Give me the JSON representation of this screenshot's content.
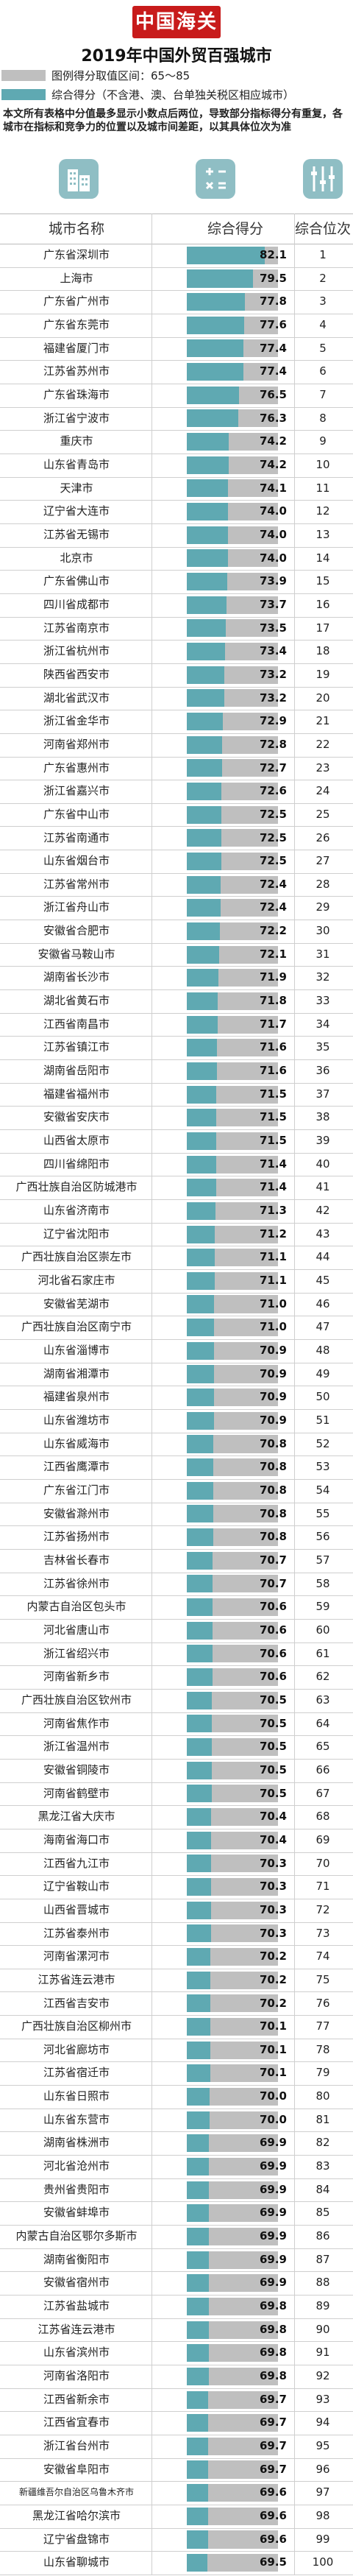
{
  "header": {
    "logo": "中国海关",
    "title": "2019年中国外贸百强城市"
  },
  "legend": {
    "range_label": "图例得分取值区间：65～85",
    "series_label": "综合得分（不含港、澳、台单独关税区相应城市）",
    "range_color": "#bfbfbf",
    "series_color": "#5fa9b2"
  },
  "note": "本文所有表格中分值最多显示小数点后两位，导致部分指标得分有重复，各城市在指标和竞争力的位置以及城市间差距，以其具体位次为准",
  "icons": [
    {
      "name": "building-icon",
      "color": "#8fbec4"
    },
    {
      "name": "calculator-icon",
      "color": "#8fbec4"
    },
    {
      "name": "ranking-list-icon",
      "color": "#8fbec4"
    }
  ],
  "columns": {
    "city": "城市名称",
    "score": "综合得分",
    "rank": "综合位次"
  },
  "chart_data": {
    "type": "bar",
    "title": "2019年中国外贸百强城市",
    "xlim": [
      65,
      85
    ],
    "categories": [
      "广东省深圳市",
      "上海市",
      "广东省广州市",
      "广东省东莞市",
      "福建省厦门市",
      "江苏省苏州市",
      "广东省珠海市",
      "浙江省宁波市",
      "重庆市",
      "山东省青岛市",
      "天津市",
      "辽宁省大连市",
      "江苏省无锡市",
      "北京市",
      "广东省佛山市",
      "四川省成都市",
      "江苏省南京市",
      "浙江省杭州市",
      "陕西省西安市",
      "湖北省武汉市",
      "浙江省金华市",
      "河南省郑州市",
      "广东省惠州市",
      "浙江省嘉兴市",
      "广东省中山市",
      "江苏省南通市",
      "山东省烟台市",
      "江苏省常州市",
      "浙江省舟山市",
      "安徽省合肥市",
      "安徽省马鞍山市",
      "湖南省长沙市",
      "湖北省黄石市",
      "江西省南昌市",
      "江苏省镇江市",
      "湖南省岳阳市",
      "福建省福州市",
      "安徽省安庆市",
      "山西省太原市",
      "四川省绵阳市",
      "广西壮族自治区防城港市",
      "山东省济南市",
      "辽宁省沈阳市",
      "广西壮族自治区崇左市",
      "河北省石家庄市",
      "安徽省芜湖市",
      "广西壮族自治区南宁市",
      "山东省淄博市",
      "湖南省湘潭市",
      "福建省泉州市",
      "山东省潍坊市",
      "山东省威海市",
      "江西省鹰潭市",
      "广东省江门市",
      "安徽省滁州市",
      "江苏省扬州市",
      "吉林省长春市",
      "江苏省徐州市",
      "内蒙古自治区包头市",
      "河北省唐山市",
      "浙江省绍兴市",
      "河南省新乡市",
      "广西壮族自治区钦州市",
      "河南省焦作市",
      "浙江省温州市",
      "安徽省铜陵市",
      "河南省鹤壁市",
      "黑龙江省大庆市",
      "海南省海口市",
      "江西省九江市",
      "辽宁省鞍山市",
      "山西省晋城市",
      "江苏省泰州市",
      "河南省漯河市",
      "江苏省连云港市",
      "江西省吉安市",
      "广西壮族自治区柳州市",
      "河北省廊坊市",
      "江苏省宿迁市",
      "山东省日照市",
      "山东省东营市",
      "湖南省株洲市",
      "河北省沧州市",
      "贵州省贵阳市",
      "安徽省蚌埠市",
      "内蒙古自治区鄂尔多斯市",
      "湖南省衡阳市",
      "安徽省宿州市",
      "江苏省盐城市",
      "江苏省连云港市",
      "山东省滨州市",
      "河南省洛阳市",
      "江西省新余市",
      "江西省宜春市",
      "浙江省台州市",
      "安徽省阜阳市",
      "新疆维吾尔自治区乌鲁木齐市",
      "黑龙江省哈尔滨市",
      "辽宁省盘锦市",
      "山东省聊城市"
    ],
    "values": [
      82.1,
      79.5,
      77.8,
      77.6,
      77.4,
      77.4,
      76.5,
      76.3,
      74.2,
      74.2,
      74.1,
      74.0,
      74.0,
      74.0,
      73.9,
      73.7,
      73.5,
      73.4,
      73.2,
      73.2,
      72.9,
      72.8,
      72.7,
      72.6,
      72.5,
      72.5,
      72.5,
      72.4,
      72.4,
      72.2,
      72.1,
      71.9,
      71.8,
      71.7,
      71.6,
      71.6,
      71.5,
      71.5,
      71.5,
      71.4,
      71.4,
      71.3,
      71.2,
      71.1,
      71.1,
      71.0,
      71.0,
      70.9,
      70.9,
      70.9,
      70.9,
      70.8,
      70.8,
      70.8,
      70.8,
      70.8,
      70.7,
      70.7,
      70.6,
      70.6,
      70.6,
      70.6,
      70.5,
      70.5,
      70.5,
      70.5,
      70.5,
      70.4,
      70.4,
      70.3,
      70.3,
      70.3,
      70.3,
      70.2,
      70.2,
      70.2,
      70.1,
      70.1,
      70.1,
      70.0,
      70.0,
      69.9,
      69.9,
      69.9,
      69.9,
      69.9,
      69.9,
      69.9,
      69.8,
      69.8,
      69.8,
      69.8,
      69.7,
      69.7,
      69.7,
      69.7,
      69.6,
      69.6,
      69.6,
      69.5
    ],
    "ranks": [
      1,
      2,
      3,
      4,
      5,
      6,
      7,
      8,
      9,
      10,
      11,
      12,
      13,
      14,
      15,
      16,
      17,
      18,
      19,
      20,
      21,
      22,
      23,
      24,
      25,
      26,
      27,
      28,
      29,
      30,
      31,
      32,
      33,
      34,
      35,
      36,
      37,
      38,
      39,
      40,
      41,
      42,
      43,
      44,
      45,
      46,
      47,
      48,
      49,
      50,
      51,
      52,
      53,
      54,
      55,
      56,
      57,
      58,
      59,
      60,
      61,
      62,
      63,
      64,
      65,
      66,
      67,
      68,
      69,
      70,
      71,
      72,
      73,
      74,
      75,
      76,
      77,
      78,
      79,
      80,
      81,
      82,
      83,
      84,
      85,
      86,
      87,
      88,
      89,
      90,
      91,
      92,
      93,
      94,
      95,
      96,
      97,
      98,
      99,
      100
    ]
  }
}
